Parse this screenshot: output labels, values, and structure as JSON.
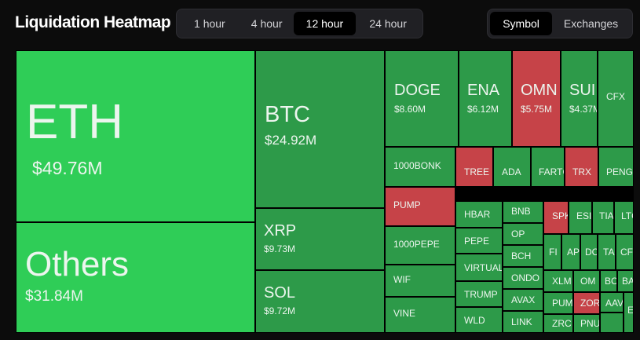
{
  "header": {
    "title": "Liquidation Heatmap"
  },
  "time_filter": {
    "options": [
      "1 hour",
      "4 hour",
      "12 hour",
      "24 hour"
    ],
    "active": 2
  },
  "view_filter": {
    "options": [
      "Symbol",
      "Exchanges"
    ],
    "active": 0
  },
  "colors": {
    "green": "#2d9a49",
    "bright": "#2fcd57",
    "red": "#c64348"
  },
  "tiles": [
    {
      "symbol": "ETH",
      "value": "$49.76M",
      "color": "bright"
    },
    {
      "symbol": "Others",
      "value": "$31.84M",
      "color": "bright"
    },
    {
      "symbol": "BTC",
      "value": "$24.92M",
      "color": "green"
    },
    {
      "symbol": "XRP",
      "value": "$9.73M",
      "color": "green"
    },
    {
      "symbol": "SOL",
      "value": "$9.72M",
      "color": "green"
    },
    {
      "symbol": "DOGE",
      "value": "$8.60M",
      "color": "green"
    },
    {
      "symbol": "ENA",
      "value": "$6.12M",
      "color": "green"
    },
    {
      "symbol": "OMN",
      "value": "$5.75M",
      "color": "red"
    },
    {
      "symbol": "SUI",
      "value": "$4.37M",
      "color": "green"
    },
    {
      "symbol": "CFX",
      "value": "",
      "color": "green"
    },
    {
      "symbol": "1000BONK",
      "value": "",
      "color": "green"
    },
    {
      "symbol": "TREE",
      "value": "",
      "color": "red"
    },
    {
      "symbol": "ADA",
      "value": "",
      "color": "green"
    },
    {
      "symbol": "FARTC",
      "value": "",
      "color": "green"
    },
    {
      "symbol": "TRX",
      "value": "",
      "color": "red"
    },
    {
      "symbol": "PENGU",
      "value": "",
      "color": "green"
    },
    {
      "symbol": "PUMP",
      "value": "",
      "color": "red"
    },
    {
      "symbol": "1000PEPE",
      "value": "",
      "color": "green"
    },
    {
      "symbol": "WIF",
      "value": "",
      "color": "green"
    },
    {
      "symbol": "VINE",
      "value": "",
      "color": "green"
    },
    {
      "symbol": "HBAR",
      "value": "",
      "color": "green"
    },
    {
      "symbol": "PEPE",
      "value": "",
      "color": "green"
    },
    {
      "symbol": "VIRTUAL",
      "value": "",
      "color": "green"
    },
    {
      "symbol": "TRUMP",
      "value": "",
      "color": "green"
    },
    {
      "symbol": "WLD",
      "value": "",
      "color": "green"
    },
    {
      "symbol": "BNB",
      "value": "",
      "color": "green"
    },
    {
      "symbol": "OP",
      "value": "",
      "color": "green"
    },
    {
      "symbol": "BCH",
      "value": "",
      "color": "green"
    },
    {
      "symbol": "ONDO",
      "value": "",
      "color": "green"
    },
    {
      "symbol": "AVAX",
      "value": "",
      "color": "green"
    },
    {
      "symbol": "LINK",
      "value": "",
      "color": "green"
    },
    {
      "symbol": "SPK",
      "value": "",
      "color": "red"
    },
    {
      "symbol": "ESI",
      "value": "",
      "color": "green"
    },
    {
      "symbol": "TIA",
      "value": "",
      "color": "green"
    },
    {
      "symbol": "LTC",
      "value": "",
      "color": "green"
    },
    {
      "symbol": "FI",
      "value": "",
      "color": "green"
    },
    {
      "symbol": "AP",
      "value": "",
      "color": "green"
    },
    {
      "symbol": "DC",
      "value": "",
      "color": "green"
    },
    {
      "symbol": "TA",
      "value": "",
      "color": "green"
    },
    {
      "symbol": "CF",
      "value": "",
      "color": "green"
    },
    {
      "symbol": "XLM",
      "value": "",
      "color": "green"
    },
    {
      "symbol": "OM",
      "value": "",
      "color": "green"
    },
    {
      "symbol": "BC",
      "value": "",
      "color": "green"
    },
    {
      "symbol": "BA",
      "value": "",
      "color": "green"
    },
    {
      "symbol": "PUM",
      "value": "",
      "color": "green"
    },
    {
      "symbol": "ZOR",
      "value": "",
      "color": "red"
    },
    {
      "symbol": "AAV",
      "value": "",
      "color": "green"
    },
    {
      "symbol": "ZRC",
      "value": "",
      "color": "green"
    },
    {
      "symbol": "PNU",
      "value": "",
      "color": "green"
    },
    {
      "symbol": "ET",
      "value": "",
      "color": "green"
    },
    {
      "symbol": "",
      "value": "",
      "color": "green"
    }
  ]
}
